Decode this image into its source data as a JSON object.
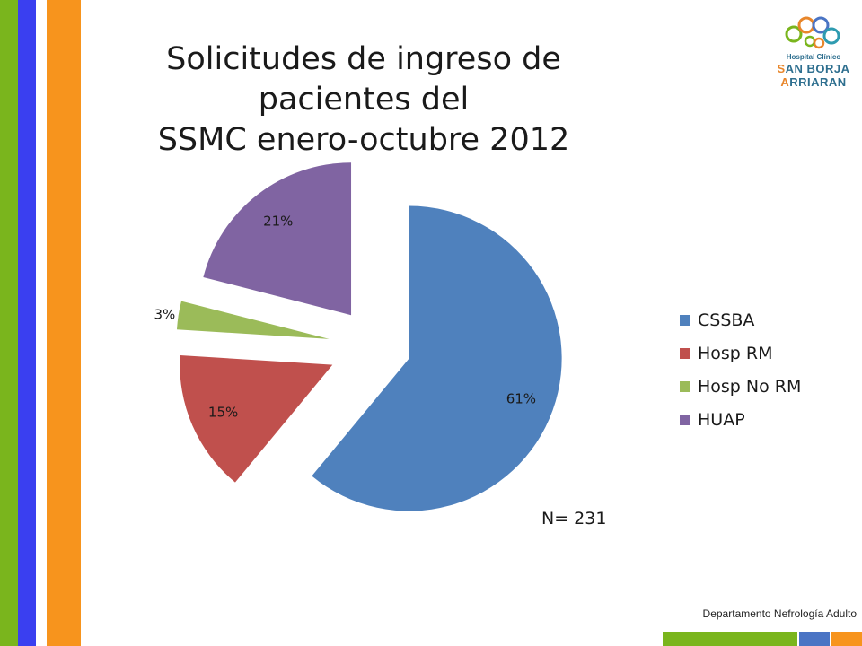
{
  "slide": {
    "title_line1": "Solicitudes de ingreso de pacientes del",
    "title_line2": "SSMC enero-octubre 2012",
    "note": "N= 231",
    "footer": "Departamento Nefrología Adulto",
    "logo": {
      "line1": "Hospital Clínico",
      "line2_initial": "S",
      "line2_rest": "AN BORJA",
      "line3_initial": "A",
      "line3_rest": "RRIARAN"
    },
    "colors": {
      "left_green": "#7ab51d",
      "left_blue": "#3a3ff0",
      "left_orange": "#f7941d",
      "bottom_green": "#7ab51d",
      "bottom_blue": "#4a74c4",
      "bottom_orange": "#f7941d"
    }
  },
  "chart_data": {
    "type": "pie",
    "exploded": true,
    "title": "Solicitudes de ingreso de pacientes del SSMC enero-octubre 2012",
    "legend_position": "right",
    "slices": [
      {
        "name": "CSSBA",
        "value": 61,
        "label": "61%",
        "color": "#4f81bd"
      },
      {
        "name": "Hosp RM",
        "value": 15,
        "label": "15%",
        "color": "#c0504d"
      },
      {
        "name": "Hosp No RM",
        "value": 3,
        "label": "3%",
        "color": "#9bbb59"
      },
      {
        "name": "HUAP",
        "value": 21,
        "label": "21%",
        "color": "#8064a2"
      }
    ]
  }
}
